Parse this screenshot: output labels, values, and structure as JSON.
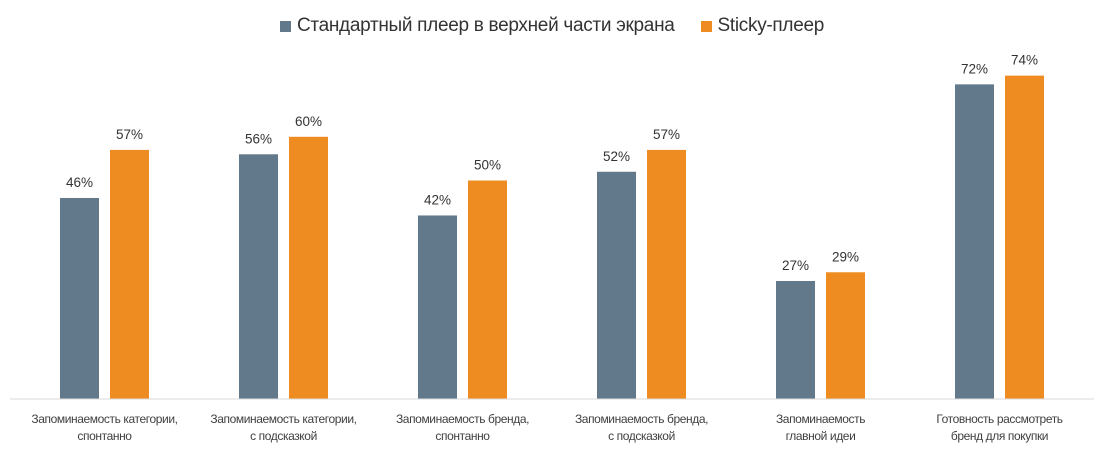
{
  "chart_data": {
    "type": "bar",
    "categories": [
      [
        "Запоминаемость категории,",
        "спонтанно"
      ],
      [
        "Запоминаемость категории,",
        "с подсказкой"
      ],
      [
        "Запоминаемость бренда,",
        "спонтанно"
      ],
      [
        "Запоминаемость бренда,",
        "с подсказкой"
      ],
      [
        "Запоминаемость",
        "главной идеи"
      ],
      [
        "Готовность рассмотреть",
        "бренд для покупки"
      ]
    ],
    "series": [
      {
        "name": "Стандартный плеер в верхней части экрана",
        "color": "#62788b",
        "values": [
          46,
          56,
          42,
          52,
          27,
          72
        ]
      },
      {
        "name": "Sticky-плеер",
        "color": "#ee8c22",
        "values": [
          57,
          60,
          50,
          57,
          29,
          74
        ]
      }
    ],
    "value_suffix": "%",
    "ylim": [
      0,
      100
    ],
    "grid": false,
    "legend_position": "top-center"
  }
}
